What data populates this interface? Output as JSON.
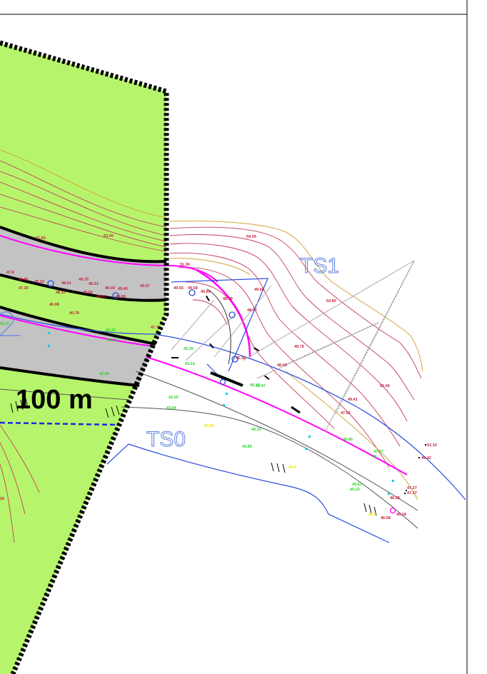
{
  "header": {
    "text": ""
  },
  "scale_label": "100  m",
  "ts_labels": {
    "ts1": "TS1",
    "ts0": "TS0"
  },
  "colors": {
    "green_zone": "#b6f56b",
    "gray_band": "#c3c3c3",
    "contour": "#c43c5c",
    "contour_major": "#d2a43c",
    "magenta": "#ff00ff",
    "blue": "#2d4de0",
    "green_text": "#22d422",
    "red_text": "#c81e3c",
    "yellow_text": "#e6e600",
    "cyan_pts": "#00d0e0"
  },
  "red_labels": [
    {
      "t": "51.83"
    },
    {
      "t": "53.00"
    },
    {
      "t": "54.09"
    },
    {
      "t": "54.80"
    },
    {
      "t": "51.36"
    },
    {
      "t": "47.8"
    },
    {
      "t": "49.96"
    },
    {
      "t": "49.19"
    },
    {
      "t": "48.61"
    },
    {
      "t": "49.70"
    },
    {
      "t": "49.21"
    },
    {
      "t": "49.39"
    },
    {
      "t": "49.45"
    },
    {
      "t": "49.67"
    },
    {
      "t": "47.30"
    },
    {
      "t": "48.11"
    },
    {
      "t": "48.60"
    },
    {
      "t": "48.67"
    },
    {
      "t": "48.68"
    },
    {
      "t": "46.98"
    },
    {
      "t": "46.78"
    },
    {
      "t": "49.65"
    },
    {
      "t": "49.58"
    },
    {
      "t": "49.69"
    },
    {
      "t": "49.66"
    },
    {
      "t": "48.98"
    },
    {
      "t": "48.47"
    },
    {
      "t": "49.76"
    },
    {
      "t": "46.38"
    },
    {
      "t": "48.00"
    },
    {
      "t": "52.46"
    },
    {
      "t": "49.41"
    },
    {
      "t": "47.92"
    },
    {
      "t": "51.10"
    },
    {
      "t": "49.42"
    },
    {
      "t": "47.27"
    },
    {
      "t": "47.27"
    },
    {
      "t": "46.28"
    },
    {
      "t": "46.18"
    },
    {
      "t": "46.08"
    },
    {
      "t": "47.7"
    },
    {
      "t": "26"
    }
  ],
  "green_labels": [
    {
      "t": "43.57"
    },
    {
      "t": "43.22"
    },
    {
      "t": "43.30"
    },
    {
      "t": "43.20"
    },
    {
      "t": "43.15"
    },
    {
      "t": "43.25"
    },
    {
      "t": "43.04"
    },
    {
      "t": "44.13"
    },
    {
      "t": "43.85"
    },
    {
      "t": "45.17"
    },
    {
      "t": "45.97"
    },
    {
      "t": "45.90"
    },
    {
      "t": "45.67"
    },
    {
      "t": "45.23"
    },
    {
      "t": "47.57"
    },
    {
      "t": "42.85"
    },
    {
      "t": "43"
    }
  ],
  "yellow_labels": [
    {
      "t": "43.81"
    },
    {
      "t": "44.0"
    },
    {
      "t": "46.3"
    }
  ]
}
